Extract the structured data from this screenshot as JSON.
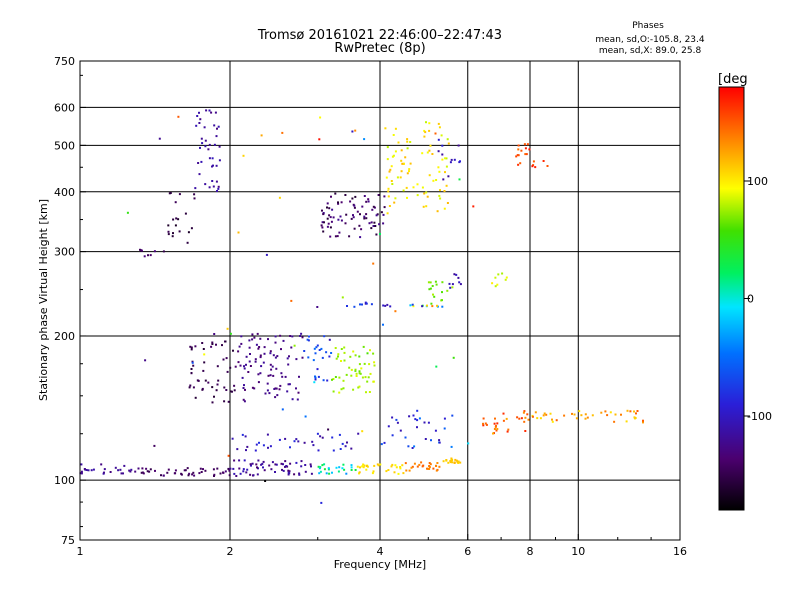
{
  "chart_data": {
    "type": "scatter",
    "title_line1": "Tromsø 20161021 22:46:00–22:47:43",
    "title_line2": "RwPretec (8p)",
    "phases_title": "Phases",
    "phases_line1": "mean, sd,O:-105.8, 23.4",
    "phases_line2": "mean, sd,X:  89.0, 25.8",
    "xlabel": "Frequency [MHz]",
    "ylabel": "Stationary phase Virtual Height [km]",
    "x_scale": "log",
    "y_scale": "log",
    "xlim": [
      1,
      16
    ],
    "ylim": [
      75,
      750
    ],
    "x_ticks": [
      1,
      2,
      4,
      6,
      8,
      10,
      16
    ],
    "x_tick_labels": [
      "1",
      "2",
      "4",
      "6",
      "8",
      "10",
      "16"
    ],
    "y_ticks": [
      75,
      100,
      200,
      300,
      400,
      500,
      600,
      750
    ],
    "y_tick_labels": [
      "75",
      "100",
      "200",
      "300",
      "400",
      "500",
      "600",
      "750"
    ],
    "x_gridlines": [
      2,
      4,
      6,
      8,
      10
    ],
    "y_gridlines": [
      100,
      200,
      300,
      400,
      500,
      600
    ],
    "grid": true,
    "colorbar": {
      "label": "[deg",
      "ticks": [
        100,
        0,
        -100
      ],
      "tick_labels": [
        "100",
        "0",
        "-100"
      ],
      "range": [
        -180,
        180
      ]
    },
    "point_groups": [
      {
        "f": [
          1.0,
          1.3
        ],
        "h": [
          103,
          108
        ],
        "phase": [
          -130,
          -110
        ],
        "n": 25
      },
      {
        "f": [
          1.3,
          2.0
        ],
        "h": [
          102,
          106
        ],
        "phase": [
          -150,
          -130
        ],
        "n": 45
      },
      {
        "f": [
          2.0,
          3.0
        ],
        "h": [
          102,
          110
        ],
        "phase": [
          -140,
          -100
        ],
        "n": 60
      },
      {
        "f": [
          3.0,
          3.6
        ],
        "h": [
          103,
          108
        ],
        "phase": [
          -40,
          40
        ],
        "n": 25
      },
      {
        "f": [
          3.6,
          4.5
        ],
        "h": [
          103,
          108
        ],
        "phase": [
          90,
          115
        ],
        "n": 30
      },
      {
        "f": [
          4.5,
          5.3
        ],
        "h": [
          104,
          109
        ],
        "phase": [
          130,
          150
        ],
        "n": 25
      },
      {
        "f": [
          5.3,
          5.8
        ],
        "h": [
          108,
          111
        ],
        "phase": [
          105,
          120
        ],
        "n": 20
      },
      {
        "f": [
          1.65,
          2.05
        ],
        "h": [
          145,
          195
        ],
        "phase": [
          -160,
          -140
        ],
        "n": 50
      },
      {
        "f": [
          2.05,
          2.8
        ],
        "h": [
          145,
          205
        ],
        "phase": [
          -140,
          -115
        ],
        "n": 95
      },
      {
        "f": [
          2.8,
          3.2
        ],
        "h": [
          160,
          200
        ],
        "phase": [
          -110,
          -50
        ],
        "n": 25
      },
      {
        "f": [
          3.2,
          3.9
        ],
        "h": [
          150,
          190
        ],
        "phase": [
          60,
          90
        ],
        "n": 55
      },
      {
        "f": [
          2.0,
          3.8
        ],
        "h": [
          115,
          125
        ],
        "phase": [
          -120,
          -80
        ],
        "n": 35
      },
      {
        "f": [
          4.0,
          5.6
        ],
        "h": [
          115,
          138
        ],
        "phase": [
          -110,
          -40
        ],
        "n": 30
      },
      {
        "f": [
          6.4,
          8.0
        ],
        "h": [
          125,
          140
        ],
        "phase": [
          120,
          170
        ],
        "n": 30
      },
      {
        "f": [
          8.0,
          13.5
        ],
        "h": [
          132,
          140
        ],
        "phase": [
          100,
          150
        ],
        "n": 40
      },
      {
        "f": [
          1.3,
          1.5
        ],
        "h": [
          292,
          305
        ],
        "phase": [
          -150,
          -130
        ],
        "n": 8
      },
      {
        "f": [
          1.5,
          1.7
        ],
        "h": [
          305,
          400
        ],
        "phase": [
          -165,
          -145
        ],
        "n": 20
      },
      {
        "f": [
          1.7,
          1.92
        ],
        "h": [
          400,
          600
        ],
        "phase": [
          -130,
          -105
        ],
        "n": 40
      },
      {
        "f": [
          3.05,
          4.1
        ],
        "h": [
          320,
          400
        ],
        "phase": [
          -160,
          -120
        ],
        "n": 80
      },
      {
        "f": [
          4.1,
          5.5
        ],
        "h": [
          360,
          560
        ],
        "phase": [
          80,
          120
        ],
        "n": 85
      },
      {
        "f": [
          5.2,
          5.8
        ],
        "h": [
          420,
          520
        ],
        "phase": [
          -120,
          -90
        ],
        "n": 12
      },
      {
        "f": [
          7.5,
          8.7
        ],
        "h": [
          450,
          505
        ],
        "phase": [
          140,
          175
        ],
        "n": 20
      },
      {
        "f": [
          5.0,
          5.6
        ],
        "h": [
          235,
          260
        ],
        "phase": [
          60,
          85
        ],
        "n": 15
      },
      {
        "f": [
          5.5,
          5.9
        ],
        "h": [
          250,
          270
        ],
        "phase": [
          -120,
          -100
        ],
        "n": 8
      },
      {
        "f": [
          6.5,
          7.2
        ],
        "h": [
          250,
          275
        ],
        "phase": [
          70,
          100
        ],
        "n": 8
      },
      {
        "f": [
          3.2,
          4.2
        ],
        "h": [
          230,
          235
        ],
        "phase": [
          -110,
          -60
        ],
        "n": 12
      },
      {
        "f": [
          4.6,
          5.5
        ],
        "h": [
          230,
          234
        ],
        "phase": [
          -110,
          160
        ],
        "n": 12
      },
      {
        "f": [
          1.2,
          6.5
        ],
        "h": [
          80,
          600
        ],
        "phase": [
          -180,
          180
        ],
        "n": 45
      }
    ]
  }
}
